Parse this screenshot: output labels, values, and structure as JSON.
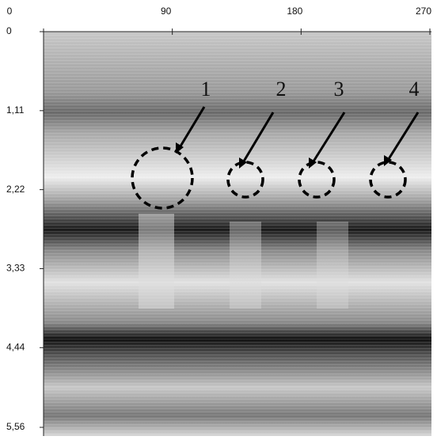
{
  "axes": {
    "xlim": [
      0,
      270
    ],
    "xticks": [
      0,
      90,
      180,
      270
    ],
    "ylim": [
      0,
      5.56
    ],
    "yticks": [
      0,
      {
        "value": 1.11,
        "label": "1,11"
      },
      {
        "value": 2.22,
        "label": "2,22"
      },
      {
        "value": 3.33,
        "label": "3,33"
      },
      {
        "value": 4.44,
        "label": "4,44"
      },
      {
        "value": 5.56,
        "label": "5,56"
      }
    ]
  },
  "annotations": [
    "1",
    "2",
    "3",
    "4"
  ]
}
